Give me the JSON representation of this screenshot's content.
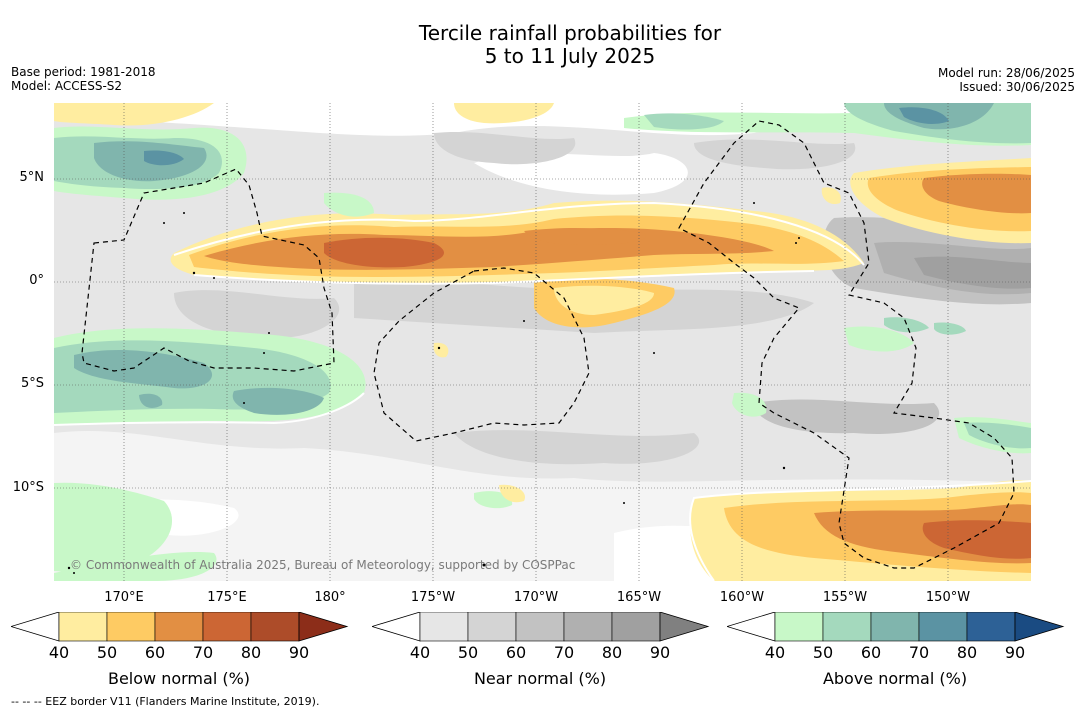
{
  "title_line1": "Tercile rainfall probabilities for",
  "title_line2": "5 to 11 July 2025",
  "base_period": "Base period: 1981-2018",
  "model": "Model: ACCESS-S2",
  "model_run": "Model run: 28/06/2025",
  "issued": "Issued: 30/06/2025",
  "copyright": "© Commonwealth of Australia 2025, Bureau of Meteorology, supported by COSPPac",
  "lon_ticks": [
    "170°E",
    "175°E",
    "180°",
    "175°W",
    "170°W",
    "165°W",
    "160°W",
    "155°W",
    "150°W"
  ],
  "lat_ticks": [
    "5°N",
    "0°",
    "5°S",
    "10°S"
  ],
  "colorbars": [
    {
      "label": "Below normal (%)",
      "ticks": [
        "40",
        "50",
        "60",
        "70",
        "80",
        "90"
      ],
      "colors": [
        "#ffffff",
        "#ffeda0",
        "#fecb63",
        "#e28f43",
        "#cc6634",
        "#ad4c29",
        "#8c2d19"
      ]
    },
    {
      "label": "Near normal (%)",
      "ticks": [
        "40",
        "50",
        "60",
        "70",
        "80",
        "90"
      ],
      "colors": [
        "#ffffff",
        "#e6e6e6",
        "#d4d4d4",
        "#c2c2c2",
        "#b0b0b0",
        "#a0a0a0",
        "#808080"
      ]
    },
    {
      "label": "Above normal (%)",
      "ticks": [
        "40",
        "50",
        "60",
        "70",
        "80",
        "90"
      ],
      "colors": [
        "#ffffff",
        "#c8f8c8",
        "#a4d9bd",
        "#80b5ad",
        "#5b93a3",
        "#2d6196",
        "#1a4b82"
      ]
    }
  ],
  "footnote": "--  --  -- EEZ border V11 (Flanders Marine Institute, 2019)."
}
